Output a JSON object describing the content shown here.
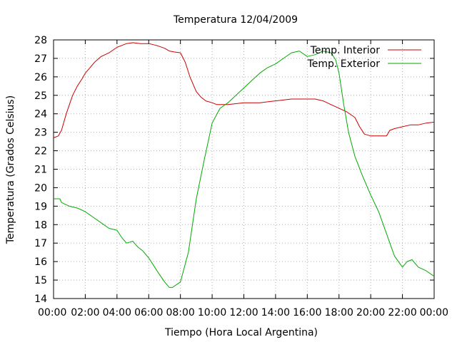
{
  "chart_data": {
    "type": "line",
    "title": "Temperatura 12/04/2009",
    "xlabel": "Tiempo (Hora Local Argentina)",
    "ylabel": "Temperatura (Grados Celsius)",
    "xlim": [
      0,
      24
    ],
    "ylim": [
      14,
      28
    ],
    "x_unit": "hours",
    "grid": true,
    "legend_position": "top-right",
    "x_ticks": [
      {
        "value": 0,
        "label": "00:00"
      },
      {
        "value": 2,
        "label": "02:00"
      },
      {
        "value": 4,
        "label": "04:00"
      },
      {
        "value": 6,
        "label": "06:00"
      },
      {
        "value": 8,
        "label": "08:00"
      },
      {
        "value": 10,
        "label": "10:00"
      },
      {
        "value": 12,
        "label": "12:00"
      },
      {
        "value": 14,
        "label": "14:00"
      },
      {
        "value": 16,
        "label": "16:00"
      },
      {
        "value": 18,
        "label": "18:00"
      },
      {
        "value": 20,
        "label": "20:00"
      },
      {
        "value": 22,
        "label": "22:00"
      },
      {
        "value": 24,
        "label": "00:00"
      }
    ],
    "y_ticks": [
      14,
      15,
      16,
      17,
      18,
      19,
      20,
      21,
      22,
      23,
      24,
      25,
      26,
      27,
      28
    ],
    "series": [
      {
        "name": "Temp. Interior",
        "color": "#cc0000",
        "x": [
          0,
          0.3,
          0.5,
          0.8,
          1.0,
          1.2,
          1.5,
          1.8,
          2.0,
          2.3,
          2.6,
          3.0,
          3.5,
          4.0,
          4.3,
          4.6,
          5.0,
          5.5,
          6.0,
          6.5,
          7.0,
          7.3,
          7.6,
          8.0,
          8.3,
          8.6,
          9.0,
          9.3,
          9.6,
          10.0,
          10.3,
          10.6,
          11.0,
          12.0,
          13.0,
          14.0,
          15.0,
          16.0,
          16.5,
          17.0,
          17.5,
          18.0,
          18.5,
          19.0,
          19.3,
          19.6,
          20.0,
          20.5,
          21.0,
          21.2,
          21.5,
          22.0,
          22.5,
          23.0,
          23.5,
          24.0
        ],
        "values": [
          22.7,
          22.8,
          23.1,
          24.0,
          24.5,
          25.0,
          25.5,
          25.9,
          26.2,
          26.5,
          26.8,
          27.1,
          27.3,
          27.6,
          27.7,
          27.8,
          27.85,
          27.8,
          27.8,
          27.7,
          27.55,
          27.4,
          27.35,
          27.3,
          26.8,
          26.0,
          25.2,
          24.9,
          24.7,
          24.6,
          24.5,
          24.5,
          24.5,
          24.6,
          24.6,
          24.7,
          24.8,
          24.8,
          24.8,
          24.7,
          24.5,
          24.3,
          24.1,
          23.8,
          23.3,
          22.9,
          22.8,
          22.8,
          22.8,
          23.1,
          23.2,
          23.3,
          23.4,
          23.4,
          23.5,
          23.55
        ]
      },
      {
        "name": "Temp. Exterior",
        "color": "#00aa00",
        "x": [
          0,
          0.4,
          0.5,
          1.0,
          1.5,
          2.0,
          2.5,
          3.0,
          3.5,
          4.0,
          4.3,
          4.6,
          5.0,
          5.3,
          5.6,
          6.0,
          6.3,
          6.6,
          7.0,
          7.3,
          7.5,
          8.0,
          8.5,
          9.0,
          9.5,
          10.0,
          10.5,
          11.0,
          11.5,
          12.0,
          12.5,
          13.0,
          13.5,
          14.0,
          14.5,
          15.0,
          15.5,
          16.0,
          16.5,
          17.0,
          17.5,
          17.8,
          18.0,
          18.3,
          18.6,
          19.0,
          19.5,
          20.0,
          20.5,
          21.0,
          21.5,
          22.0,
          22.3,
          22.6,
          23.0,
          23.5,
          24.0
        ],
        "values": [
          19.4,
          19.4,
          19.2,
          19.0,
          18.9,
          18.7,
          18.4,
          18.1,
          17.8,
          17.7,
          17.3,
          17.0,
          17.1,
          16.8,
          16.6,
          16.2,
          15.8,
          15.4,
          14.9,
          14.6,
          14.6,
          14.9,
          16.5,
          19.4,
          21.5,
          23.5,
          24.3,
          24.6,
          25.0,
          25.4,
          25.8,
          26.2,
          26.5,
          26.7,
          27.0,
          27.3,
          27.4,
          27.1,
          27.2,
          27.4,
          27.3,
          26.9,
          26.2,
          24.5,
          23.0,
          21.7,
          20.6,
          19.6,
          18.7,
          17.5,
          16.3,
          15.7,
          16.0,
          16.1,
          15.7,
          15.5,
          15.2
        ]
      }
    ]
  }
}
